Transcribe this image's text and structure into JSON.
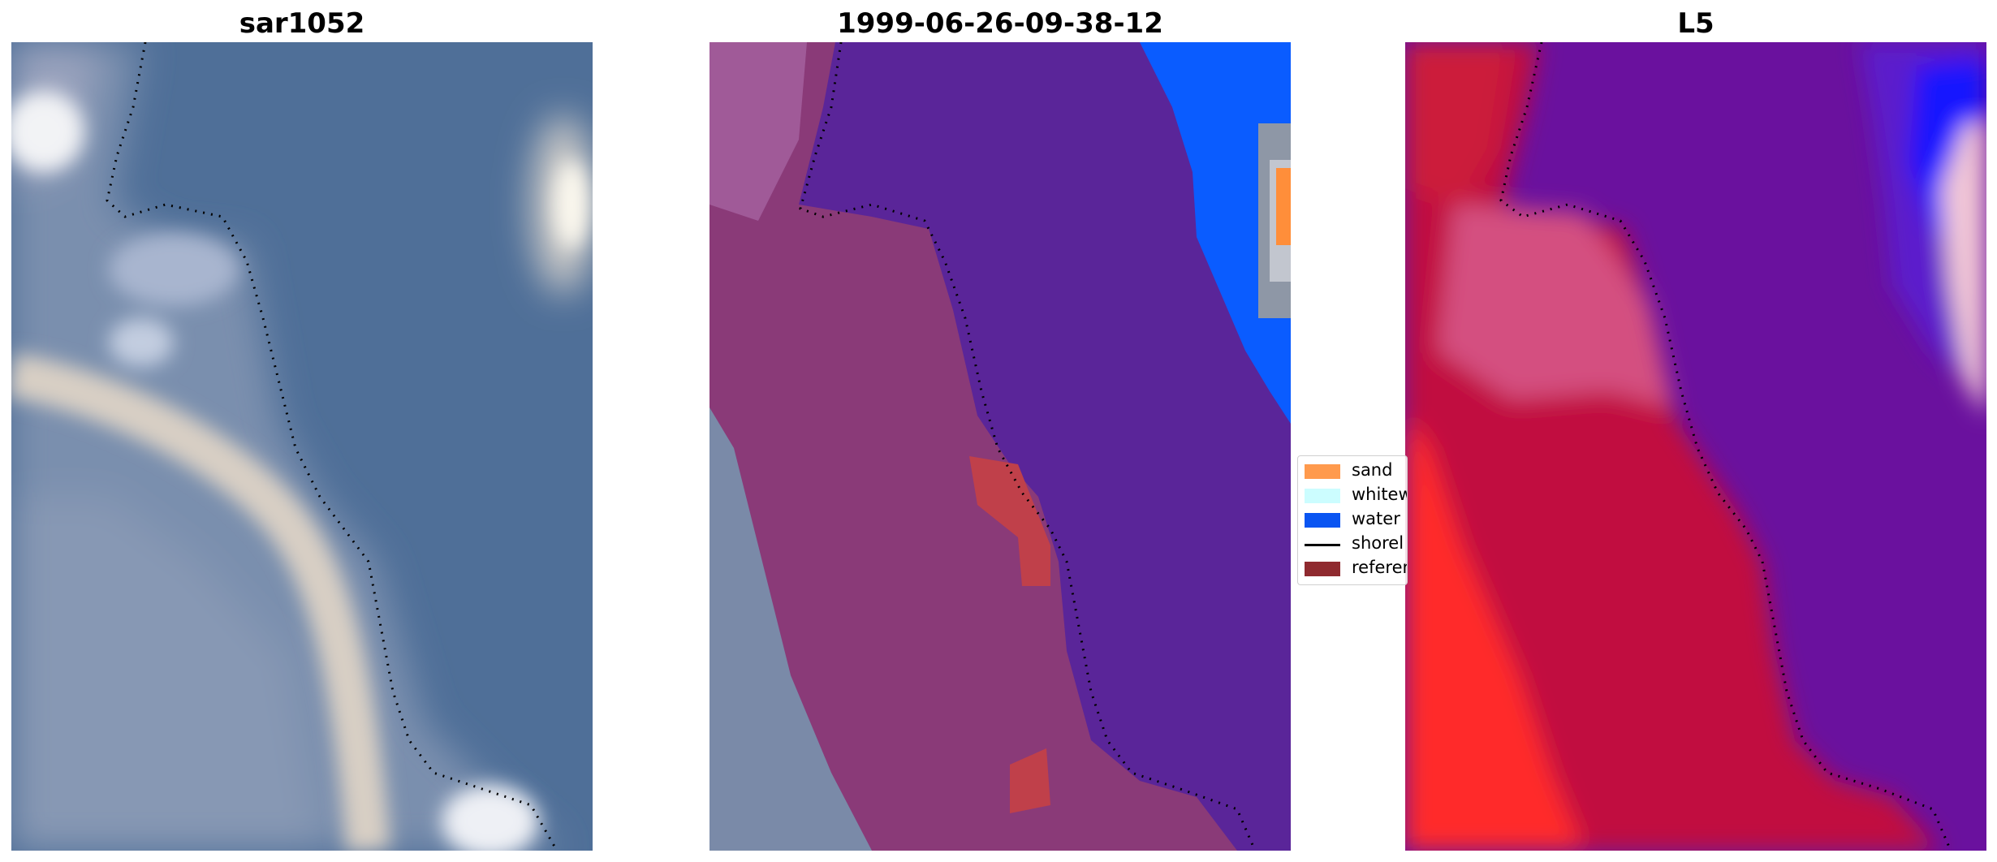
{
  "panels": [
    {
      "id": "rgb",
      "title": "sar1052"
    },
    {
      "id": "classified",
      "title": "1999-06-26-09-38-12"
    },
    {
      "id": "index",
      "title": "L5"
    }
  ],
  "legend": {
    "items": [
      {
        "label": "sand",
        "color": "#ff9a4d",
        "kind": "patch"
      },
      {
        "label": "whitew",
        "color": "#ccfdff",
        "kind": "patch"
      },
      {
        "label": "water",
        "color": "#0a55f2",
        "kind": "patch"
      },
      {
        "label": "shorel",
        "color": "#000000",
        "kind": "line"
      },
      {
        "label": "referen",
        "color": "#8f2a2f",
        "kind": "patch"
      }
    ]
  }
}
